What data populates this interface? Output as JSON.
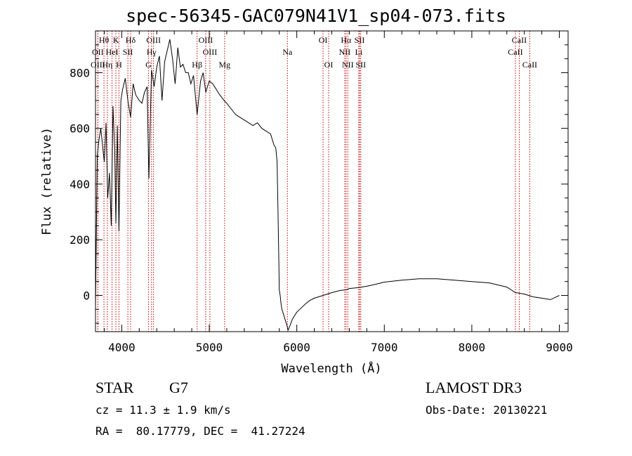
{
  "chart_data": {
    "type": "line",
    "title": "spec-56345-GAC079N41V1_sp04-073.fits",
    "xlabel": "Wavelength (Å)",
    "ylabel": "Flux (relative)",
    "xlim": [
      3700,
      9100
    ],
    "ylim": [
      -130,
      950
    ],
    "xticks": [
      4000,
      5000,
      6000,
      7000,
      8000,
      9000
    ],
    "yticks": [
      0,
      200,
      400,
      600,
      800
    ],
    "grid": false,
    "series": [
      {
        "name": "spectrum",
        "x": [
          3700,
          3720,
          3740,
          3760,
          3780,
          3800,
          3820,
          3840,
          3860,
          3880,
          3900,
          3920,
          3933,
          3950,
          3968,
          3990,
          4010,
          4040,
          4070,
          4101,
          4130,
          4160,
          4200,
          4230,
          4260,
          4290,
          4310,
          4340,
          4370,
          4400,
          4430,
          4460,
          4490,
          4520,
          4550,
          4580,
          4610,
          4640,
          4670,
          4700,
          4730,
          4760,
          4790,
          4820,
          4861,
          4900,
          4930,
          4960,
          5000,
          5040,
          5080,
          5120,
          5170,
          5200,
          5250,
          5300,
          5350,
          5400,
          5450,
          5500,
          5550,
          5600,
          5650,
          5700,
          5740,
          5760,
          5775,
          5785,
          5795,
          5800,
          5810,
          5820,
          5830,
          5850,
          5870,
          5890,
          5900,
          5920,
          5950,
          6000,
          6050,
          6100,
          6150,
          6200,
          6300,
          6400,
          6500,
          6563,
          6600,
          6700,
          6800,
          6900,
          7000,
          7200,
          7400,
          7600,
          7800,
          8000,
          8200,
          8400,
          8500,
          8600,
          8700,
          8800,
          8900,
          9000
        ],
        "values": [
          -40,
          500,
          560,
          600,
          540,
          480,
          620,
          350,
          440,
          250,
          680,
          520,
          260,
          610,
          230,
          700,
          740,
          780,
          700,
          640,
          760,
          720,
          700,
          690,
          730,
          750,
          420,
          810,
          750,
          820,
          860,
          700,
          840,
          880,
          920,
          850,
          760,
          890,
          820,
          830,
          800,
          800,
          760,
          790,
          650,
          770,
          800,
          730,
          770,
          760,
          740,
          720,
          700,
          690,
          670,
          650,
          640,
          630,
          620,
          610,
          620,
          600,
          590,
          580,
          540,
          530,
          480,
          300,
          120,
          20,
          0,
          -30,
          -50,
          -70,
          -90,
          -110,
          -125,
          -110,
          -85,
          -60,
          -45,
          -30,
          -18,
          -10,
          0,
          10,
          18,
          20,
          25,
          28,
          33,
          40,
          48,
          55,
          60,
          60,
          55,
          50,
          45,
          30,
          10,
          5,
          -5,
          -10,
          -15,
          0
        ]
      }
    ],
    "lines": [
      {
        "label": "Hθ",
        "x": 3797,
        "row": 1
      },
      {
        "label": "OII",
        "x": 3727,
        "row": 2
      },
      {
        "label": "OIII",
        "x": 3727,
        "row": 3
      },
      {
        "label": "Hη",
        "x": 3835,
        "row": 3
      },
      {
        "label": "HeI",
        "x": 3889,
        "row": 2
      },
      {
        "label": "K",
        "x": 3933,
        "row": 1
      },
      {
        "label": "H",
        "x": 3968,
        "row": 3
      },
      {
        "label": "SII",
        "x": 4070,
        "row": 2
      },
      {
        "label": "Hδ",
        "x": 4101,
        "row": 1
      },
      {
        "label": "OIII",
        "x": 4363,
        "row": 1
      },
      {
        "label": "Hγ",
        "x": 4340,
        "row": 2
      },
      {
        "label": "G",
        "x": 4305,
        "row": 3
      },
      {
        "label": "Hβ",
        "x": 4861,
        "row": 3
      },
      {
        "label": "OIII",
        "x": 4959,
        "row": 1
      },
      {
        "label": "OIII",
        "x": 5007,
        "row": 2
      },
      {
        "label": "Mg",
        "x": 5175,
        "row": 3
      },
      {
        "label": "Na",
        "x": 5893,
        "row": 2
      },
      {
        "label": "OI",
        "x": 6300,
        "row": 1
      },
      {
        "label": "OI",
        "x": 6364,
        "row": 3
      },
      {
        "label": "Hα",
        "x": 6563,
        "row": 1
      },
      {
        "label": "NII",
        "x": 6548,
        "row": 2
      },
      {
        "label": "NII",
        "x": 6583,
        "row": 3
      },
      {
        "label": "SII",
        "x": 6717,
        "row": 1
      },
      {
        "label": "Li",
        "x": 6708,
        "row": 2
      },
      {
        "label": "SII",
        "x": 6731,
        "row": 3
      },
      {
        "label": "CaII",
        "x": 8498,
        "row": 2
      },
      {
        "label": "CaII",
        "x": 8542,
        "row": 1
      },
      {
        "label": "CaII",
        "x": 8662,
        "row": 3
      }
    ]
  },
  "info": {
    "object_type": "STAR",
    "subclass": "G7",
    "survey": "LAMOST DR3",
    "cz": "cz = 11.3 ± 1.9 km/s",
    "obs_date": "Obs-Date: 20130221",
    "coords": "RA =  80.17779, DEC =  41.27224"
  }
}
